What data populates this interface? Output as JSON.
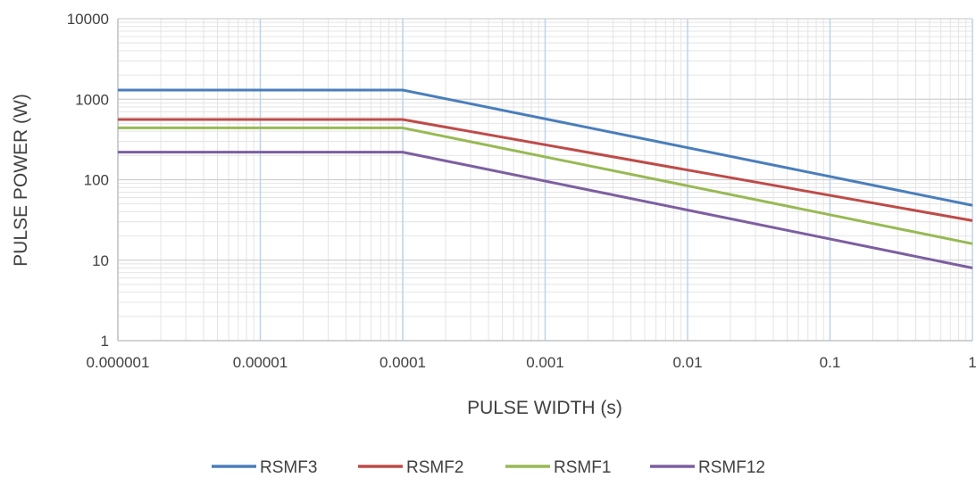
{
  "chart_data": {
    "type": "line",
    "title": "",
    "xlabel": "PULSE WIDTH (s)",
    "ylabel": "PULSE POWER (W)",
    "x_scale": "log",
    "y_scale": "log",
    "xlim": [
      1e-06,
      1
    ],
    "ylim": [
      1,
      10000
    ],
    "x_ticks": [
      1e-06,
      1e-05,
      0.0001,
      0.001,
      0.01,
      0.1,
      1
    ],
    "x_tick_labels": [
      "0.000001",
      "0.00001",
      "0.0001",
      "0.001",
      "0.01",
      "0.1",
      "1"
    ],
    "y_ticks": [
      1,
      10,
      100,
      1000,
      10000
    ],
    "y_tick_labels": [
      "1",
      "10",
      "100",
      "1000",
      "10000"
    ],
    "grid": true,
    "legend_position": "bottom",
    "series": [
      {
        "name": "RSMF3",
        "color": "#4a7ebb",
        "x": [
          1e-06,
          0.0001,
          1
        ],
        "y": [
          1300,
          1300,
          48
        ]
      },
      {
        "name": "RSMF2",
        "color": "#be4b48",
        "x": [
          1e-06,
          0.0001,
          1
        ],
        "y": [
          560,
          560,
          31
        ]
      },
      {
        "name": "RSMF1",
        "color": "#98b954",
        "x": [
          1e-06,
          0.0001,
          1
        ],
        "y": [
          440,
          440,
          16
        ]
      },
      {
        "name": "RSMF12",
        "color": "#7d5fa0",
        "x": [
          1e-06,
          0.0001,
          1
        ],
        "y": [
          220,
          220,
          8
        ]
      }
    ]
  }
}
